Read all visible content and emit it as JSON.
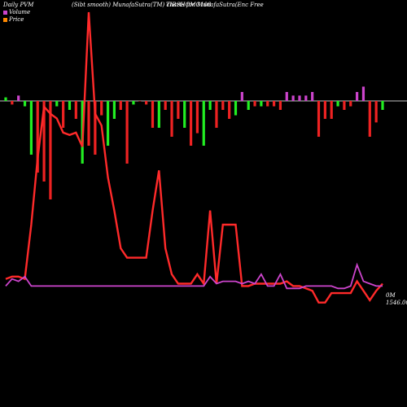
{
  "header": {
    "left": "Daily PVM",
    "middle": "(Sibt smooth) MunafaSutra(TM) charts for",
    "symbol": "TIRSHOMG108",
    "right": "MunafaSutra(Enc Free"
  },
  "legend": [
    {
      "label": "Volume",
      "color": "#cc44cc"
    },
    {
      "label": "Price",
      "color": "#ff8800"
    }
  ],
  "labels": {
    "volume_tag": "0M",
    "price_tag": "1546.00"
  },
  "colors": {
    "background": "#000000",
    "price_line": "#ff2a2a",
    "volume_line": "#cc44cc",
    "bar_up": "#22ee22",
    "bar_down": "#ee2222",
    "bar_mixed": "#cc44cc",
    "zero_line": "#ffffff"
  },
  "chart_data": {
    "type": "line",
    "title": "",
    "xlabel": "",
    "ylabel": "",
    "n_points": 60,
    "series": [
      {
        "name": "Price",
        "values": [
          17,
          18,
          18,
          17,
          40,
          68,
          90,
          87,
          85,
          79,
          78,
          79,
          73,
          130,
          87,
          82,
          60,
          46,
          30,
          26,
          26,
          26,
          26,
          46,
          63,
          30,
          19,
          15,
          15,
          15,
          19,
          15,
          46,
          15,
          40,
          40,
          40,
          14,
          14,
          15,
          15,
          15,
          15,
          15,
          16,
          14,
          14,
          13,
          12,
          7,
          7,
          11,
          11,
          11,
          11,
          16,
          12,
          8,
          12,
          15
        ]
      },
      {
        "name": "Volume",
        "values": [
          14,
          17,
          16,
          18,
          14,
          14,
          14,
          14,
          14,
          14,
          14,
          14,
          14,
          14,
          14,
          14,
          14,
          14,
          14,
          14,
          14,
          14,
          14,
          14,
          14,
          14,
          14,
          14,
          14,
          14,
          14,
          14,
          18,
          15,
          16,
          16,
          16,
          15,
          16,
          15,
          19,
          14,
          14,
          19,
          13,
          13,
          13,
          14,
          14,
          14,
          14,
          14,
          13,
          13,
          14,
          23,
          16,
          15,
          14,
          14
        ]
      },
      {
        "name": "PVM",
        "values": [
          2,
          -2,
          3,
          -3,
          -30,
          -40,
          -45,
          -55,
          -3,
          -15,
          -5,
          -10,
          -35,
          -25,
          -30,
          -8,
          -25,
          -10,
          -5,
          -35,
          -2,
          0,
          -2,
          -15,
          -15,
          -5,
          -20,
          -10,
          -15,
          -25,
          -18,
          -25,
          -5,
          -15,
          -5,
          -10,
          -8,
          5,
          -5,
          -3,
          -3,
          -3,
          -3,
          -5,
          5,
          3,
          3,
          3,
          5,
          -20,
          -10,
          -10,
          -3,
          -5,
          -3,
          5,
          8,
          -20,
          -12,
          -5
        ]
      }
    ]
  }
}
